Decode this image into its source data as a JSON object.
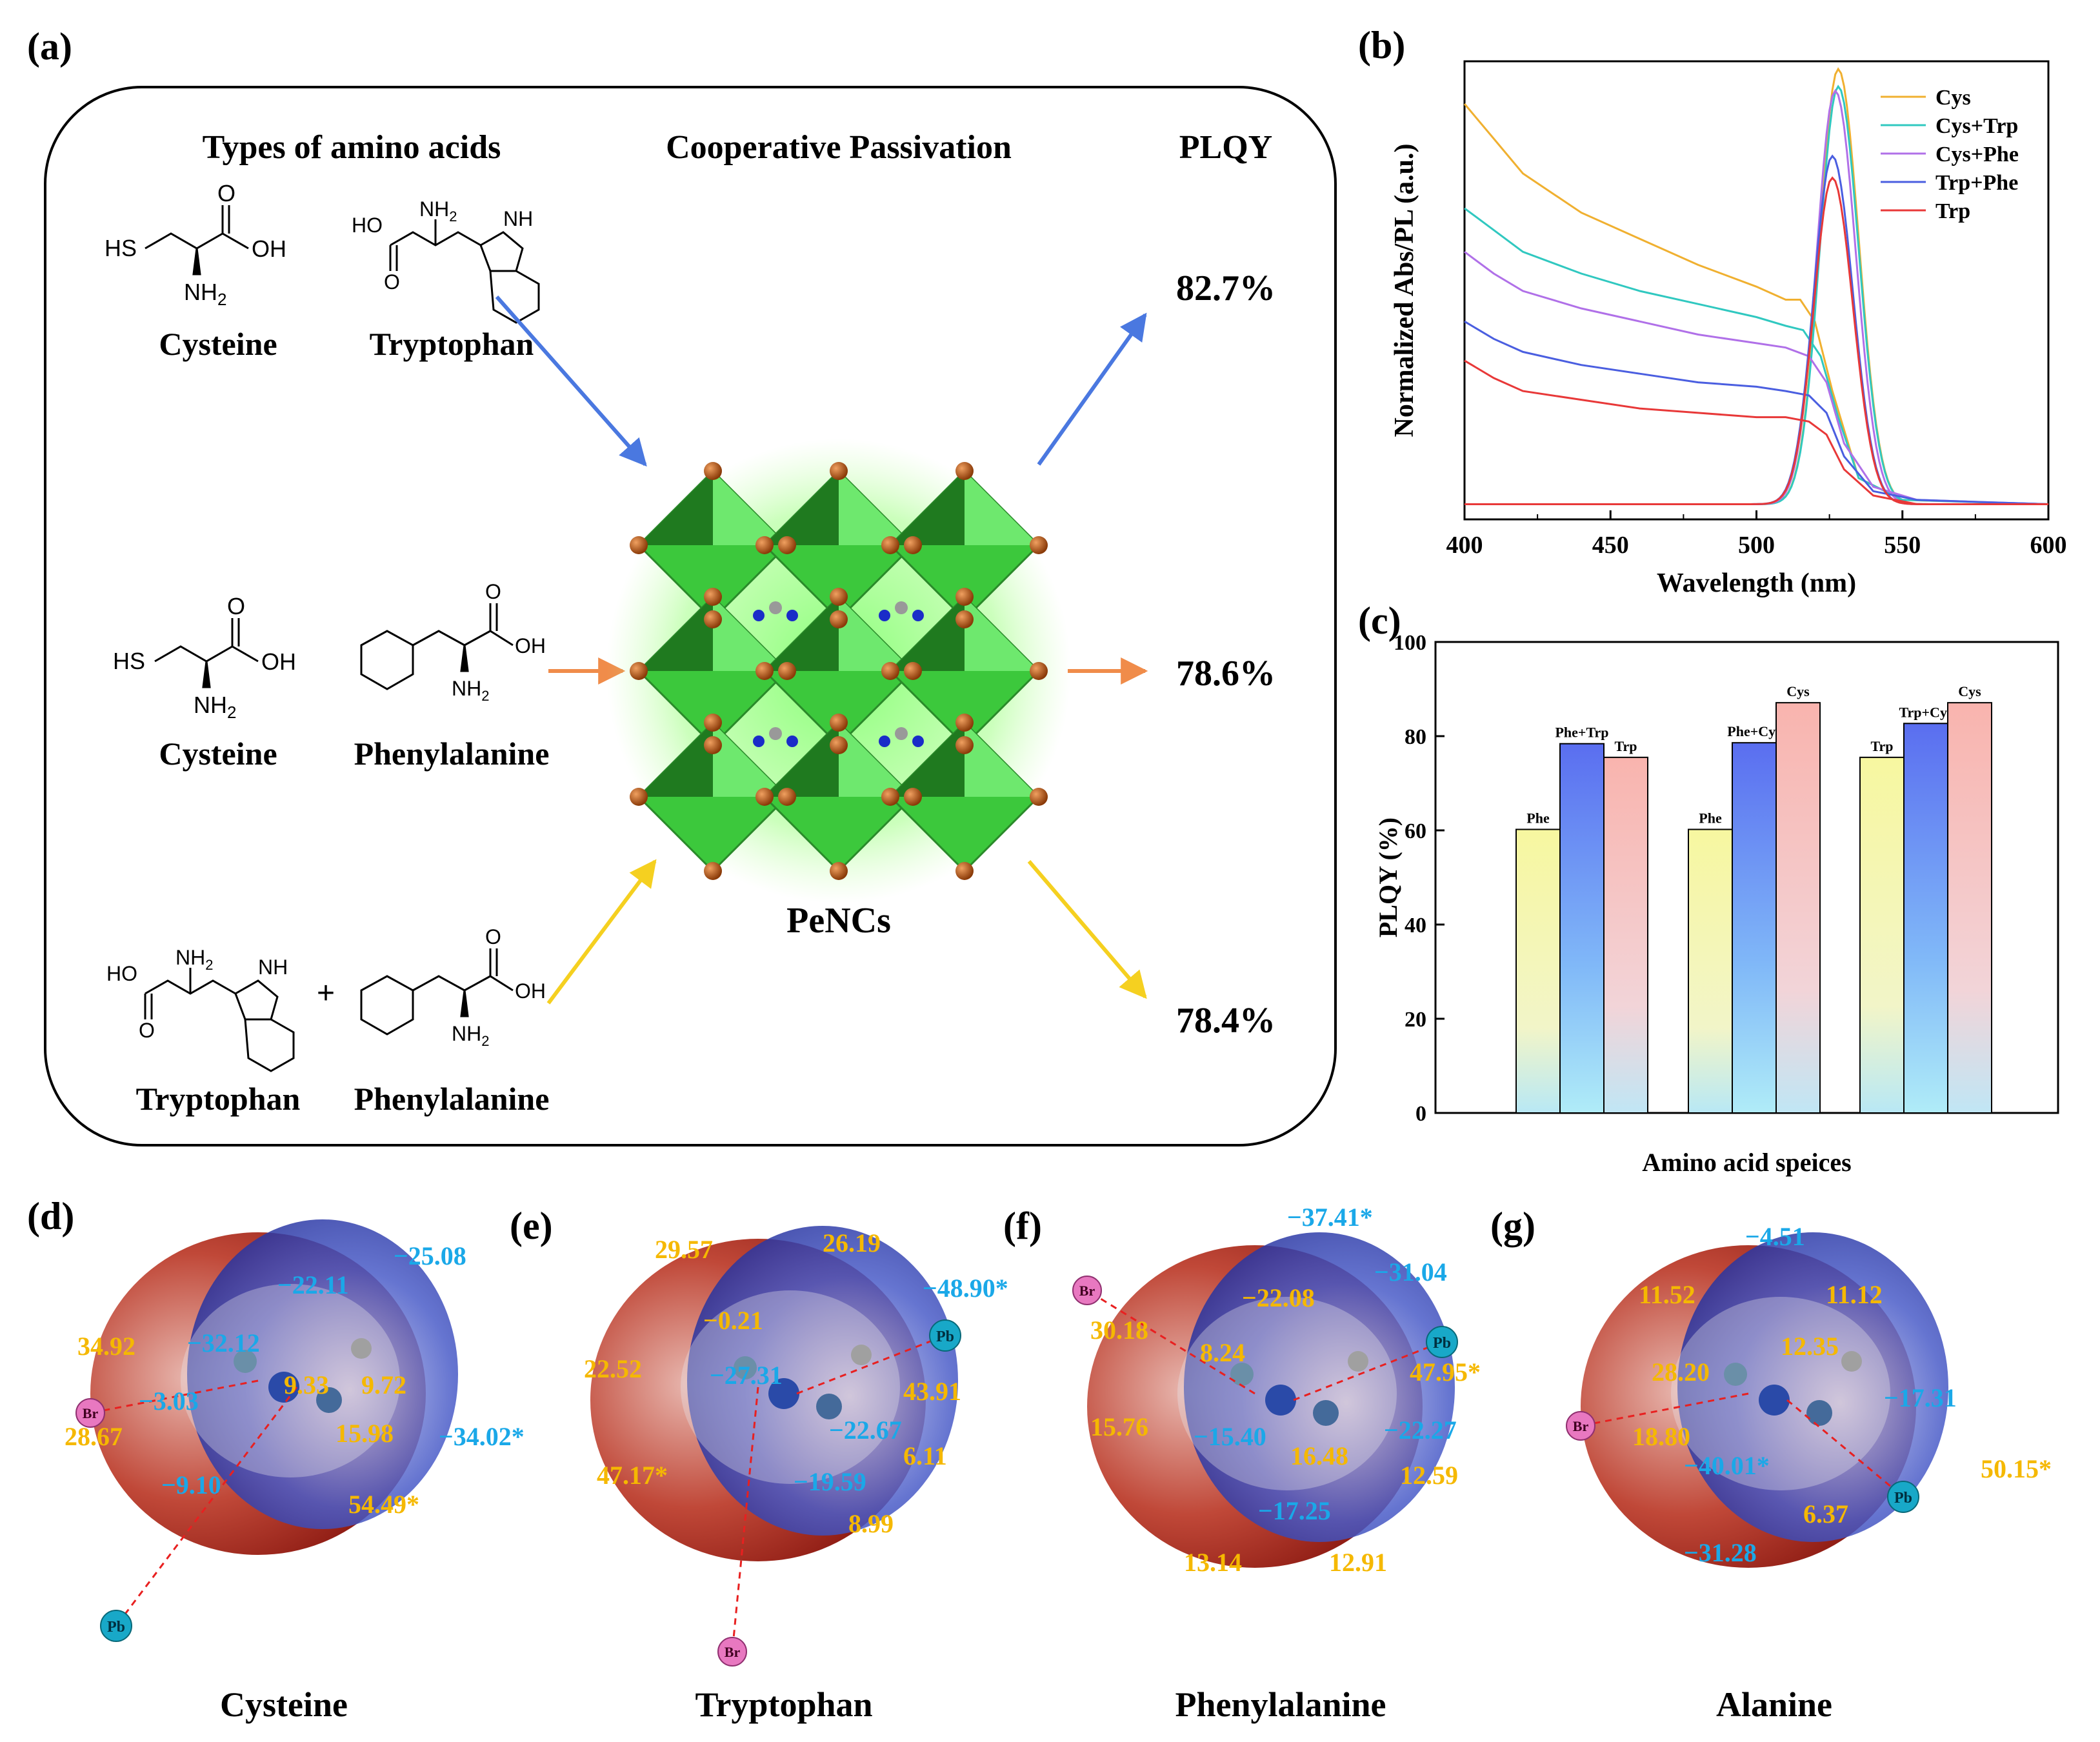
{
  "panels": {
    "a": "(a)",
    "b": "(b)",
    "c": "(c)",
    "d": "(d)",
    "e": "(e)",
    "f": "(f)",
    "g": "(g)"
  },
  "schematic": {
    "col_types": "Types of amino acids",
    "col_passivation": "Cooperative Passivation",
    "col_plqy": "PLQY",
    "rows": [
      {
        "left": "Cysteine",
        "right": "Tryptophan",
        "plqy": "82.7%",
        "color": "#4a78e0"
      },
      {
        "left": "Cysteine",
        "right": "Phenylalanine",
        "plqy": "78.6%",
        "color": "#f08c4a"
      },
      {
        "left": "Tryptophan",
        "right": "Phenylalanine",
        "plqy": "78.4%",
        "color": "#f5d020"
      }
    ],
    "plus": "+",
    "center_label": "PeNCs",
    "atoms": {
      "sh": "HS",
      "oh": "OH",
      "ho": "HO",
      "nh2": "NH",
      "nh2_sub": "2",
      "nh": "NH",
      "o": "O"
    }
  },
  "chart_data": [
    {
      "panel": "b",
      "type": "line",
      "xlabel": "Wavelength (nm)",
      "ylabel": "Normalized Abs/PL (a.u.)",
      "xlim": [
        400,
        600
      ],
      "xticks": [
        400,
        450,
        500,
        550,
        600
      ],
      "series": [
        {
          "name": "Cys",
          "color": "#f0b030",
          "abs": [
            [
              400,
              0.94
            ],
            [
              410,
              0.86
            ],
            [
              420,
              0.78
            ],
            [
              440,
              0.69
            ],
            [
              460,
              0.63
            ],
            [
              480,
              0.57
            ],
            [
              500,
              0.52
            ],
            [
              510,
              0.49
            ],
            [
              515,
              0.49
            ],
            [
              520,
              0.44
            ],
            [
              526,
              0.28
            ],
            [
              535,
              0.08
            ],
            [
              550,
              0.03
            ],
            [
              600,
              0.02
            ]
          ],
          "pl_peak": 528,
          "pl_height": 1.0
        },
        {
          "name": "Cys+Trp",
          "color": "#30c8c0",
          "abs": [
            [
              400,
              0.7
            ],
            [
              410,
              0.65
            ],
            [
              420,
              0.6
            ],
            [
              440,
              0.55
            ],
            [
              460,
              0.51
            ],
            [
              480,
              0.48
            ],
            [
              500,
              0.45
            ],
            [
              510,
              0.43
            ],
            [
              516,
              0.42
            ],
            [
              522,
              0.36
            ],
            [
              528,
              0.22
            ],
            [
              535,
              0.08
            ],
            [
              550,
              0.03
            ],
            [
              600,
              0.02
            ]
          ],
          "pl_peak": 528,
          "pl_height": 0.96
        },
        {
          "name": "Cys+Phe",
          "color": "#b070e8",
          "abs": [
            [
              400,
              0.6
            ],
            [
              410,
              0.55
            ],
            [
              420,
              0.51
            ],
            [
              440,
              0.47
            ],
            [
              460,
              0.44
            ],
            [
              480,
              0.41
            ],
            [
              500,
              0.39
            ],
            [
              510,
              0.38
            ],
            [
              518,
              0.36
            ],
            [
              524,
              0.3
            ],
            [
              530,
              0.16
            ],
            [
              540,
              0.06
            ],
            [
              555,
              0.03
            ],
            [
              600,
              0.02
            ]
          ],
          "pl_peak": 527,
          "pl_height": 0.95
        },
        {
          "name": "Trp+Phe",
          "color": "#4a5ee0",
          "abs": [
            [
              400,
              0.44
            ],
            [
              410,
              0.4
            ],
            [
              420,
              0.37
            ],
            [
              440,
              0.34
            ],
            [
              460,
              0.32
            ],
            [
              480,
              0.3
            ],
            [
              500,
              0.29
            ],
            [
              510,
              0.28
            ],
            [
              518,
              0.27
            ],
            [
              524,
              0.23
            ],
            [
              530,
              0.13
            ],
            [
              540,
              0.05
            ],
            [
              555,
              0.03
            ],
            [
              600,
              0.02
            ]
          ],
          "pl_peak": 526,
          "pl_height": 0.8
        },
        {
          "name": "Trp",
          "color": "#e83838",
          "abs": [
            [
              400,
              0.35
            ],
            [
              410,
              0.31
            ],
            [
              420,
              0.28
            ],
            [
              440,
              0.26
            ],
            [
              460,
              0.24
            ],
            [
              480,
              0.23
            ],
            [
              500,
              0.22
            ],
            [
              510,
              0.22
            ],
            [
              518,
              0.21
            ],
            [
              524,
              0.18
            ],
            [
              530,
              0.1
            ],
            [
              540,
              0.04
            ],
            [
              555,
              0.02
            ],
            [
              600,
              0.02
            ]
          ],
          "pl_peak": 526,
          "pl_height": 0.75
        }
      ],
      "pl_baseline": 0.02
    },
    {
      "panel": "c",
      "type": "bar",
      "xlabel": "Amino acid speices",
      "ylabel": "PLQY (%)",
      "ylim": [
        0,
        100
      ],
      "yticks": [
        0,
        20,
        40,
        60,
        80,
        100
      ],
      "groups": [
        {
          "bars": [
            {
              "label": "Phe",
              "value": 60.2,
              "color": "#f5f5a8"
            },
            {
              "label": "Phe+Trp",
              "value": 78.4,
              "color": "#6a82f0"
            },
            {
              "label": "Trp",
              "value": 75.5,
              "color": "#f7b8b0"
            }
          ]
        },
        {
          "bars": [
            {
              "label": "Phe",
              "value": 60.2,
              "color": "#f5f5a8"
            },
            {
              "label": "Phe+Cys",
              "value": 78.6,
              "color": "#6a82f0"
            },
            {
              "label": "Cys",
              "value": 87.1,
              "color": "#f7b8b0"
            }
          ]
        },
        {
          "bars": [
            {
              "label": "Trp",
              "value": 75.5,
              "color": "#f5f5a8"
            },
            {
              "label": "Trp+Cys",
              "value": 82.7,
              "color": "#6a82f0"
            },
            {
              "label": "Cys",
              "value": 87.1,
              "color": "#f7b8b0"
            }
          ]
        }
      ]
    }
  ],
  "esp": [
    {
      "panel": "d",
      "name": "Cysteine",
      "pb": "Pb",
      "br": "Br",
      "labels": [
        {
          "t": "−25.08",
          "c": "blue"
        },
        {
          "t": "−22.11",
          "c": "blue"
        },
        {
          "t": "34.92",
          "c": "orange"
        },
        {
          "t": "−32.12",
          "c": "blue"
        },
        {
          "t": "9.33",
          "c": "orange"
        },
        {
          "t": "9.72",
          "c": "orange"
        },
        {
          "t": "−3.03",
          "c": "blue"
        },
        {
          "t": "15.98",
          "c": "orange"
        },
        {
          "t": "28.67",
          "c": "orange"
        },
        {
          "t": "−34.02*",
          "c": "blue"
        },
        {
          "t": "−9.10",
          "c": "blue"
        },
        {
          "t": "54.49*",
          "c": "orange"
        }
      ]
    },
    {
      "panel": "e",
      "name": "Tryptophan",
      "pb": "Pb",
      "br": "Br",
      "labels": [
        {
          "t": "29.57",
          "c": "orange"
        },
        {
          "t": "26.19",
          "c": "orange"
        },
        {
          "t": "−48.90*",
          "c": "blue"
        },
        {
          "t": "−0.21",
          "c": "orange"
        },
        {
          "t": "22.52",
          "c": "orange"
        },
        {
          "t": "−27.31",
          "c": "blue"
        },
        {
          "t": "43.91",
          "c": "orange"
        },
        {
          "t": "−22.67",
          "c": "blue"
        },
        {
          "t": "6.11",
          "c": "orange"
        },
        {
          "t": "47.17*",
          "c": "orange"
        },
        {
          "t": "−19.59",
          "c": "blue"
        },
        {
          "t": "8.99",
          "c": "orange"
        }
      ]
    },
    {
      "panel": "f",
      "name": "Phenylalanine",
      "pb": "Pb",
      "br": "Br",
      "labels": [
        {
          "t": "−37.41*",
          "c": "blue"
        },
        {
          "t": "−31.04",
          "c": "blue"
        },
        {
          "t": "−22.08",
          "c": "orange"
        },
        {
          "t": "30.18",
          "c": "orange"
        },
        {
          "t": "8.24",
          "c": "orange"
        },
        {
          "t": "47.95*",
          "c": "orange"
        },
        {
          "t": "15.76",
          "c": "orange"
        },
        {
          "t": "−15.40",
          "c": "blue"
        },
        {
          "t": "−22.27",
          "c": "blue"
        },
        {
          "t": "16.48",
          "c": "orange"
        },
        {
          "t": "12.59",
          "c": "orange"
        },
        {
          "t": "−17.25",
          "c": "blue"
        },
        {
          "t": "13.14",
          "c": "orange"
        },
        {
          "t": "12.91",
          "c": "orange"
        }
      ]
    },
    {
      "panel": "g",
      "name": "Alanine",
      "pb": "Pb",
      "br": "Br",
      "labels": [
        {
          "t": "−4.51",
          "c": "blue"
        },
        {
          "t": "11.52",
          "c": "orange"
        },
        {
          "t": "11.12",
          "c": "orange"
        },
        {
          "t": "12.35",
          "c": "orange"
        },
        {
          "t": "28.20",
          "c": "orange"
        },
        {
          "t": "−17.31",
          "c": "blue"
        },
        {
          "t": "18.80",
          "c": "orange"
        },
        {
          "t": "−40.01*",
          "c": "blue"
        },
        {
          "t": "50.15*",
          "c": "orange"
        },
        {
          "t": "6.37",
          "c": "orange"
        },
        {
          "t": "−31.28",
          "c": "blue"
        }
      ]
    }
  ],
  "colors": {
    "orange": "#f5b800",
    "blue": "#1aa8e8"
  }
}
